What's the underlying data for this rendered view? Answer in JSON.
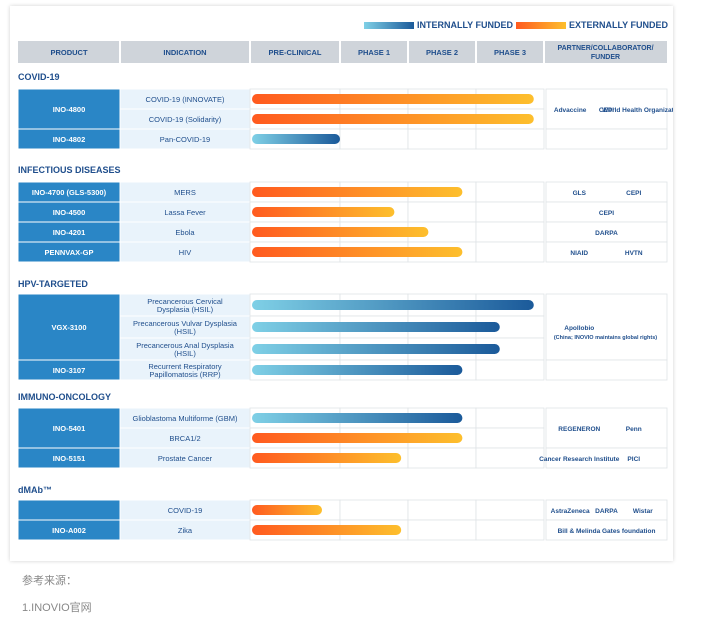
{
  "legend": {
    "internal_label": "INTERNALLY FUNDED",
    "external_label": "EXTERNALLY FUNDED",
    "internal_color_start": "#7fd0e6",
    "internal_color_end": "#1b5a9a",
    "external_color_start": "#ff5a1f",
    "external_color_end": "#fdbf2d"
  },
  "colors": {
    "header_bg": "#cfd4da",
    "product_bg": "#2a86c6",
    "indication_bg": "#e9f3fb",
    "section_title": "#1f4e8c"
  },
  "chart_data": {
    "type": "table",
    "columns": [
      "PRODUCT",
      "INDICATION",
      "PRE-CLINICAL",
      "PHASE 1",
      "PHASE 2",
      "PHASE 3",
      "PARTNER/COLLABORATOR/ FUNDER"
    ],
    "stages": [
      "PRE-CLINICAL",
      "PHASE 1",
      "PHASE 2",
      "PHASE 3"
    ],
    "sections": [
      {
        "title": "COVID-19",
        "products": [
          {
            "name": "INO-4800",
            "rows": [
              {
                "indication": "COVID-19 (INNOVATE)",
                "progress": 3.85,
                "funding": "external"
              },
              {
                "indication": "COVID-19 (Solidarity)",
                "progress": 3.85,
                "funding": "external"
              }
            ],
            "partners": [
              "Advaccine",
              "CEPI",
              "World Health Organization"
            ]
          },
          {
            "name": "INO-4802",
            "rows": [
              {
                "indication": "Pan-COVID-19",
                "progress": 1.0,
                "funding": "internal"
              }
            ],
            "partners": []
          }
        ]
      },
      {
        "title": "INFECTIOUS DISEASES",
        "products": [
          {
            "name": "INO-4700 (GLS-5300)",
            "rows": [
              {
                "indication": "MERS",
                "progress": 2.8,
                "funding": "external"
              }
            ],
            "partners": [
              "GLS",
              "CEPI"
            ]
          },
          {
            "name": "INO-4500",
            "rows": [
              {
                "indication": "Lassa Fever",
                "progress": 1.8,
                "funding": "external"
              }
            ],
            "partners": [
              "CEPI"
            ]
          },
          {
            "name": "INO-4201",
            "rows": [
              {
                "indication": "Ebola",
                "progress": 2.3,
                "funding": "external"
              }
            ],
            "partners": [
              "DARPA"
            ]
          },
          {
            "name": "PENNVAX-GP",
            "rows": [
              {
                "indication": "HIV",
                "progress": 2.8,
                "funding": "external"
              }
            ],
            "partners": [
              "NIAID",
              "HVTN"
            ]
          }
        ]
      },
      {
        "title": "HPV-TARGETED",
        "products": [
          {
            "name": "VGX-3100",
            "rows": [
              {
                "indication": "Precancerous Cervical Dysplasia (HSIL)",
                "progress": 3.85,
                "funding": "internal"
              },
              {
                "indication": "Precancerous Vulvar Dysplasia (HSIL)",
                "progress": 3.35,
                "funding": "internal"
              },
              {
                "indication": "Precancerous Anal Dysplasia (HSIL)",
                "progress": 3.35,
                "funding": "internal"
              }
            ],
            "partners": [
              "Apollobio",
              "(China; INOVIO maintains global rights)"
            ]
          },
          {
            "name": "INO-3107",
            "rows": [
              {
                "indication": "Recurrent Respiratory Papillomatosis (RRP)",
                "progress": 2.8,
                "funding": "internal"
              }
            ],
            "partners": []
          }
        ]
      },
      {
        "title": "IMMUNO-ONCOLOGY",
        "products": [
          {
            "name": "INO-5401",
            "rows": [
              {
                "indication": "Glioblastoma Multiforme (GBM)",
                "progress": 2.8,
                "funding": "internal"
              },
              {
                "indication": "BRCA1/2",
                "progress": 2.8,
                "funding": "external"
              }
            ],
            "partners": [
              "REGENERON",
              "Penn"
            ]
          },
          {
            "name": "INO-5151",
            "rows": [
              {
                "indication": "Prostate Cancer",
                "progress": 1.9,
                "funding": "external"
              }
            ],
            "partners": [
              "Cancer Research Institute",
              "PICI"
            ]
          }
        ]
      },
      {
        "title": "dMAb™",
        "products": [
          {
            "name": "",
            "rows": [
              {
                "indication": "COVID-19",
                "progress": 0.8,
                "funding": "external"
              }
            ],
            "partners": [
              "AstraZeneca",
              "DARPA",
              "Wistar"
            ]
          },
          {
            "name": "INO-A002",
            "rows": [
              {
                "indication": "Zika",
                "progress": 1.9,
                "funding": "external"
              }
            ],
            "partners": [
              "Bill & Melinda Gates foundation"
            ]
          }
        ]
      }
    ]
  },
  "footer": {
    "source_label": "参考来源：",
    "source_item": "1.INOVIO官网"
  }
}
